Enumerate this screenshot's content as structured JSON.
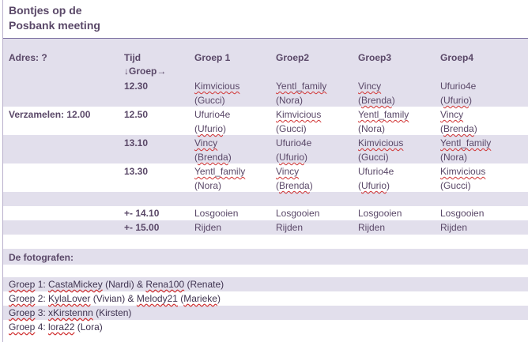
{
  "title": {
    "line1": "Bontjes op de",
    "line2": "Posbank meeting"
  },
  "header": {
    "adres": "Adres: ?",
    "tijd": "Tijd",
    "groep_arrows": "↓Groep→",
    "groups": [
      "Groep 1",
      "Groep2",
      "Groep3",
      "Groep4"
    ]
  },
  "rows": [
    {
      "time": "12.30",
      "cells": [
        {
          "name": "Kimvicious",
          "sub": "(Gucci)"
        },
        {
          "name": "Yentl_family",
          "sub": "(Nora)"
        },
        {
          "name": "Vincy",
          "sub_inner": "Brenda"
        },
        {
          "name": "Ufurio4e",
          "sub_inner": "Ufurio"
        }
      ]
    },
    {
      "label": "Verzamelen: 12.00",
      "time": "12.50",
      "cells": [
        {
          "name": "Ufurio4e",
          "sub_inner": "Ufurio"
        },
        {
          "name": "Kimvicious",
          "sub": "(Gucci)"
        },
        {
          "name": "Yentl_family",
          "sub": "(Nora)"
        },
        {
          "name": "Vincy",
          "sub_inner": "Brenda"
        }
      ]
    },
    {
      "time": "13.10",
      "cells": [
        {
          "name": "Vincy",
          "sub_inner": "Brenda"
        },
        {
          "name": "Ufurio4e",
          "sub_inner": "Ufurio"
        },
        {
          "name": "Kimvicious",
          "sub": "(Gucci)"
        },
        {
          "name": "Yentl_family",
          "sub": "(Nora)"
        }
      ]
    },
    {
      "time": "13.30",
      "cells": [
        {
          "name": "Yentl_family",
          "sub": "(Nora)"
        },
        {
          "name": "Vincy",
          "sub_inner": "Brenda"
        },
        {
          "name": "Ufurio4e",
          "sub_inner": "Ufurio"
        },
        {
          "name": "Kimvicious",
          "sub": "(Gucci)"
        }
      ]
    },
    {
      "time": "+- 14.10",
      "cells": [
        "Losgooien",
        "Losgooien",
        "Losgooien",
        "Losgooien"
      ]
    },
    {
      "time": "+- 15.00",
      "cells": [
        "Rijden",
        "Rijden",
        "Rijden",
        "Rijden"
      ]
    }
  ],
  "fotografen": {
    "heading": "De fotografen:",
    "lines": [
      {
        "groep": "Groep",
        "sep": " 1: ",
        "p1": "CastaMickey",
        "p1_tail": " (Nardi)  &  ",
        "p2": "Rena100",
        "p2_tail": " (Renate)"
      },
      {
        "groep": "Groep",
        "sep": " 2: ",
        "p1": "KylaLover",
        "p1_tail": " (Vivian) & ",
        "p2": "Melody21",
        "p2_mid": " (",
        "p2_name": "Marieke",
        "p2_tail": ")"
      },
      {
        "groep": "Groep",
        "sep": " 3: ",
        "p1": "xKirstennn",
        "p1_tail": " (Kirsten)"
      },
      {
        "groep": "Groep",
        "sep": " 4: ",
        "p1": "lora22",
        "p1_tail": " (Lora)"
      }
    ]
  }
}
